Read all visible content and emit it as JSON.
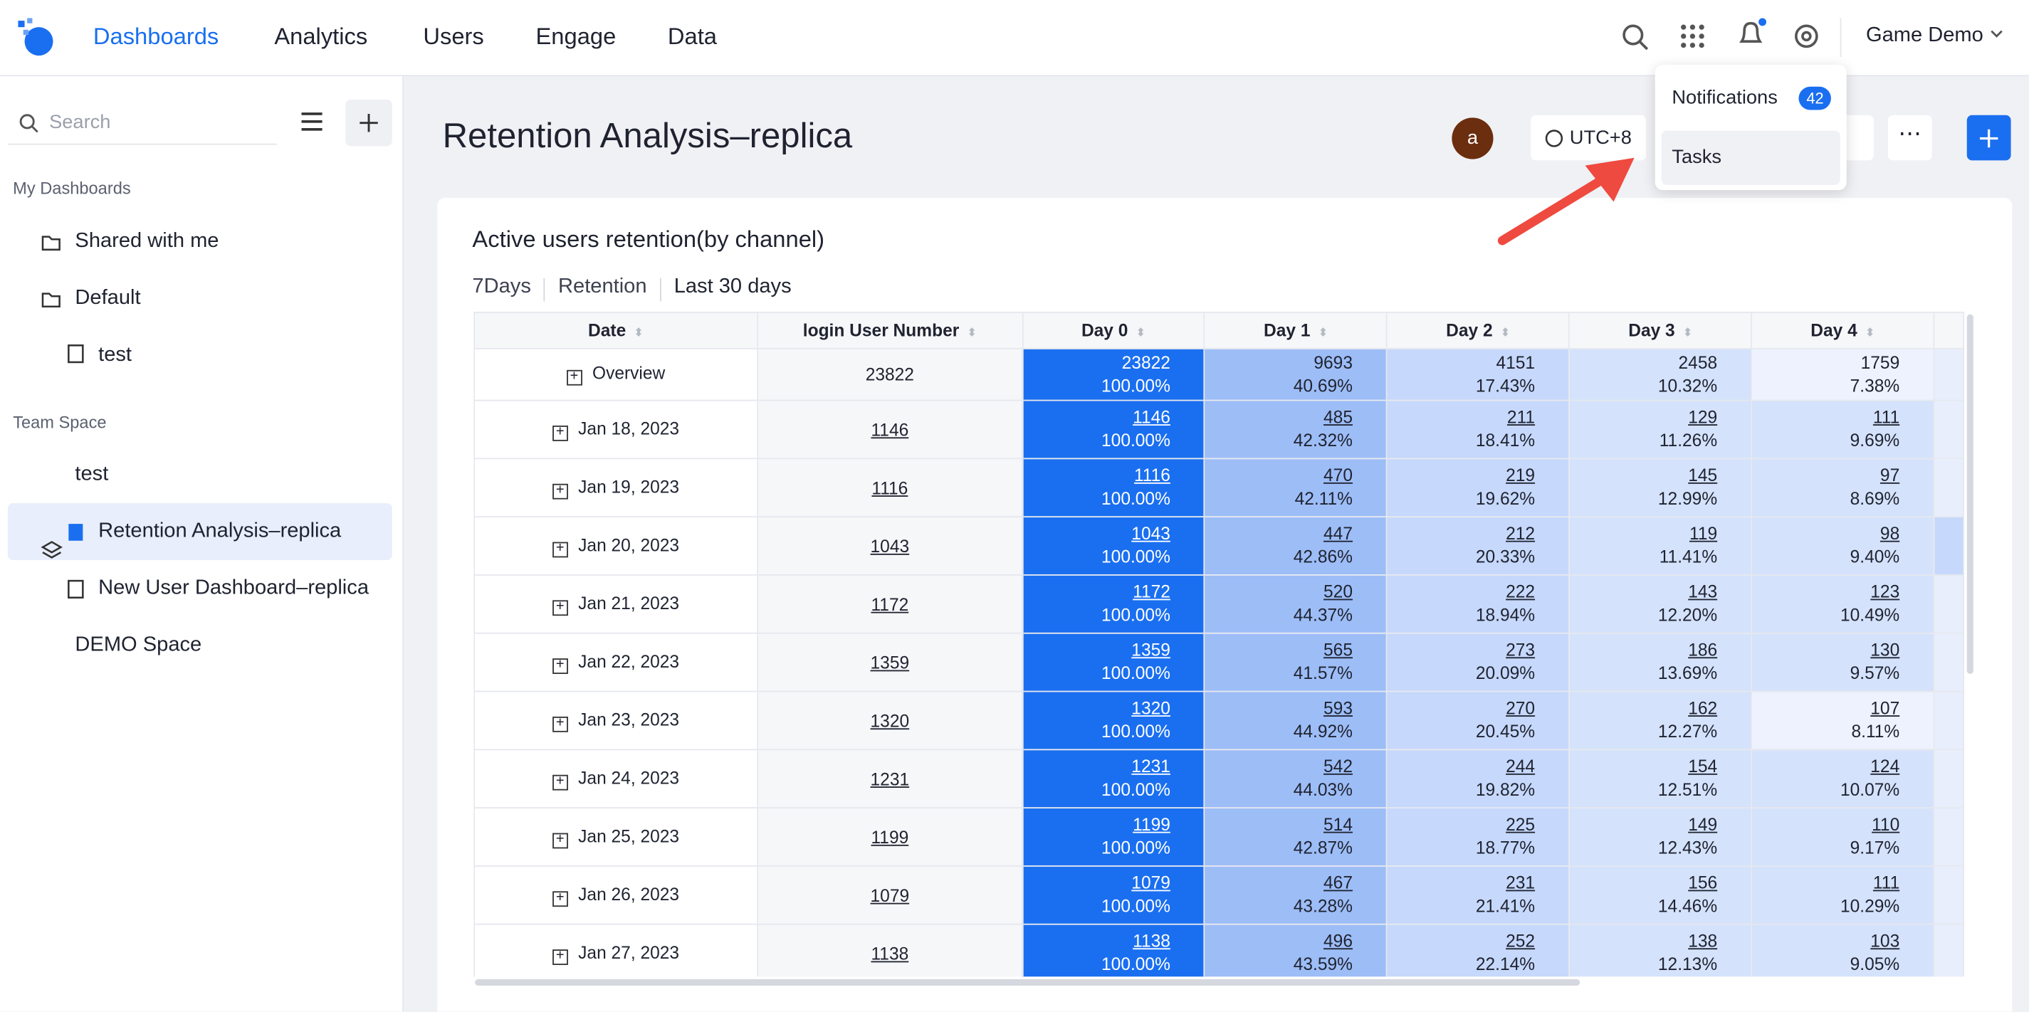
{
  "nav": {
    "items": [
      "Dashboards",
      "Analytics",
      "Users",
      "Engage",
      "Data"
    ],
    "project": "Game Demo"
  },
  "sidebar": {
    "search": "Search",
    "sections": [
      {
        "title": "My Dashboards",
        "items": [
          "Shared with me",
          "Default",
          "test"
        ]
      },
      {
        "title": "Team Space",
        "items": [
          "test",
          "Retention Analysis–replica",
          "New User Dashboard–replica",
          "DEMO Space"
        ]
      }
    ]
  },
  "header": {
    "title": "Retention Analysis–replica",
    "avatar": "a",
    "timezone": "UTC+8"
  },
  "dropdown": {
    "notifications": "Notifications",
    "badge": "42",
    "tasks": "Tasks"
  },
  "card": {
    "title": "Active users retention(by channel)",
    "filters": [
      "7Days",
      "Retention",
      "Last 30 days"
    ]
  },
  "table": {
    "columns": [
      "Date",
      "login User Number",
      "Day 0",
      "Day 1",
      "Day 2",
      "Day 3",
      "Day 4"
    ],
    "rows": [
      {
        "date": "Overview",
        "users": "23822",
        "days": [
          [
            "23822",
            "100.00%"
          ],
          [
            "9693",
            "40.69%"
          ],
          [
            "4151",
            "17.43%"
          ],
          [
            "2458",
            "10.32%"
          ],
          [
            "1759",
            "7.38%"
          ]
        ]
      },
      {
        "date": "Jan 18, 2023",
        "users": "1146",
        "days": [
          [
            "1146",
            "100.00%"
          ],
          [
            "485",
            "42.32%"
          ],
          [
            "211",
            "18.41%"
          ],
          [
            "129",
            "11.26%"
          ],
          [
            "111",
            "9.69%"
          ]
        ]
      },
      {
        "date": "Jan 19, 2023",
        "users": "1116",
        "days": [
          [
            "1116",
            "100.00%"
          ],
          [
            "470",
            "42.11%"
          ],
          [
            "219",
            "19.62%"
          ],
          [
            "145",
            "12.99%"
          ],
          [
            "97",
            "8.69%"
          ]
        ]
      },
      {
        "date": "Jan 20, 2023",
        "users": "1043",
        "days": [
          [
            "1043",
            "100.00%"
          ],
          [
            "447",
            "42.86%"
          ],
          [
            "212",
            "20.33%"
          ],
          [
            "119",
            "11.41%"
          ],
          [
            "98",
            "9.40%"
          ]
        ]
      },
      {
        "date": "Jan 21, 2023",
        "users": "1172",
        "days": [
          [
            "1172",
            "100.00%"
          ],
          [
            "520",
            "44.37%"
          ],
          [
            "222",
            "18.94%"
          ],
          [
            "143",
            "12.20%"
          ],
          [
            "123",
            "10.49%"
          ]
        ]
      },
      {
        "date": "Jan 22, 2023",
        "users": "1359",
        "days": [
          [
            "1359",
            "100.00%"
          ],
          [
            "565",
            "41.57%"
          ],
          [
            "273",
            "20.09%"
          ],
          [
            "186",
            "13.69%"
          ],
          [
            "130",
            "9.57%"
          ]
        ]
      },
      {
        "date": "Jan 23, 2023",
        "users": "1320",
        "days": [
          [
            "1320",
            "100.00%"
          ],
          [
            "593",
            "44.92%"
          ],
          [
            "270",
            "20.45%"
          ],
          [
            "162",
            "12.27%"
          ],
          [
            "107",
            "8.11%"
          ]
        ]
      },
      {
        "date": "Jan 24, 2023",
        "users": "1231",
        "days": [
          [
            "1231",
            "100.00%"
          ],
          [
            "542",
            "44.03%"
          ],
          [
            "244",
            "19.82%"
          ],
          [
            "154",
            "12.51%"
          ],
          [
            "124",
            "10.07%"
          ]
        ]
      },
      {
        "date": "Jan 25, 2023",
        "users": "1199",
        "days": [
          [
            "1199",
            "100.00%"
          ],
          [
            "514",
            "42.87%"
          ],
          [
            "225",
            "18.77%"
          ],
          [
            "149",
            "12.43%"
          ],
          [
            "110",
            "9.17%"
          ]
        ]
      },
      {
        "date": "Jan 26, 2023",
        "users": "1079",
        "days": [
          [
            "1079",
            "100.00%"
          ],
          [
            "467",
            "43.28%"
          ],
          [
            "231",
            "21.41%"
          ],
          [
            "156",
            "14.46%"
          ],
          [
            "111",
            "10.29%"
          ]
        ]
      },
      {
        "date": "Jan 27, 2023",
        "users": "1138",
        "days": [
          [
            "1138",
            "100.00%"
          ],
          [
            "496",
            "43.59%"
          ],
          [
            "252",
            "22.14%"
          ],
          [
            "138",
            "12.13%"
          ],
          [
            "103",
            "9.05%"
          ]
        ]
      }
    ]
  }
}
